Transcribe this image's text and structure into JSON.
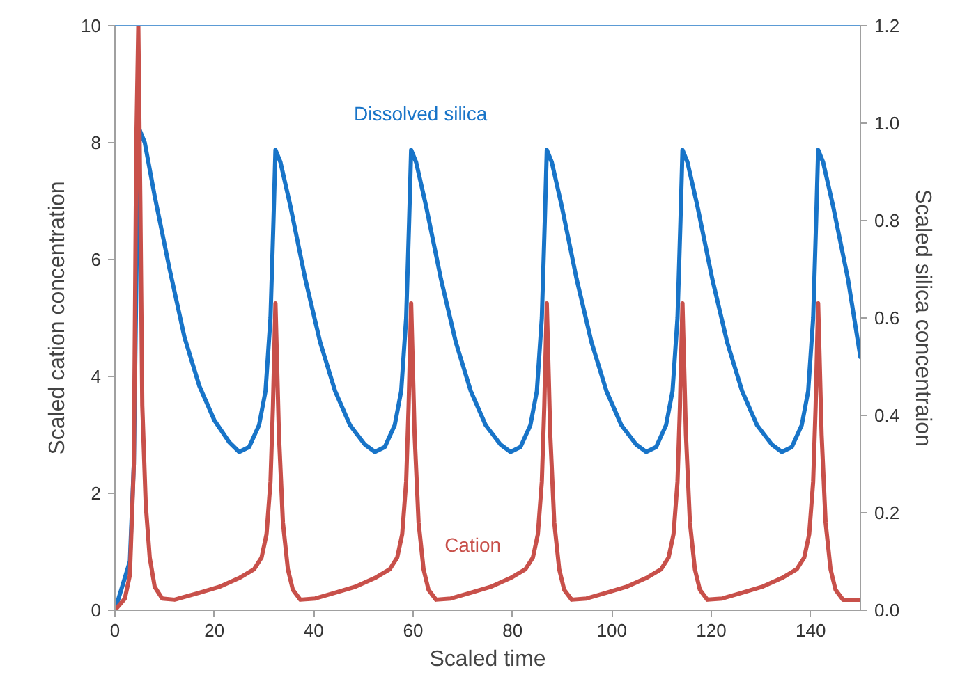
{
  "chart_data": {
    "type": "line",
    "xlabel": "Scaled time",
    "ylabel": "Scaled cation concentration",
    "y2label": "Scaled silica concentraion",
    "xlim": [
      0,
      150
    ],
    "xticks": [
      0,
      20,
      40,
      60,
      80,
      100,
      120,
      140
    ],
    "ylim": [
      0,
      10
    ],
    "yticks": [
      0,
      2,
      4,
      6,
      8,
      10
    ],
    "y2lim": [
      0,
      1.2
    ],
    "y2ticks": [
      {
        "value": 0,
        "label": "0.0"
      },
      {
        "value": 0.2,
        "label": "0.2"
      },
      {
        "value": 0.4,
        "label": "0.4"
      },
      {
        "value": 0.6,
        "label": "0.6"
      },
      {
        "value": 0.8,
        "label": "0.8"
      },
      {
        "value": 1.0,
        "label": "1.0"
      },
      {
        "value": 1.2,
        "label": "1.2"
      }
    ],
    "grid": false,
    "marker": "none",
    "line_style": "solid",
    "series": [
      {
        "name": "Dissolved silica",
        "color": "#1874c8",
        "axis": "y2",
        "x": [
          0,
          1.5,
          3,
          3.8,
          4.2,
          4.6,
          5,
          6,
          8,
          11,
          14,
          17,
          20,
          23,
          25,
          27,
          29,
          30.3,
          31.3,
          31.9,
          32.3,
          33.3,
          35.3,
          38.3,
          41.3,
          44.3,
          47.3,
          50.3,
          52.3,
          54.3,
          56.3,
          57.6,
          58.6,
          59.2,
          59.6,
          60.6,
          62.6,
          65.6,
          68.6,
          71.6,
          74.6,
          77.6,
          79.6,
          81.6,
          83.6,
          84.9,
          85.9,
          86.5,
          86.9,
          87.9,
          89.9,
          92.9,
          95.9,
          98.9,
          101.9,
          104.9,
          106.9,
          108.9,
          110.9,
          112.2,
          113.2,
          113.8,
          114.2,
          115.2,
          117.2,
          120.2,
          123.2,
          126.2,
          129.2,
          132.2,
          134.2,
          136.2,
          138.2,
          139.5,
          140.5,
          141.1,
          141.5,
          142.5,
          144.5,
          147.5,
          150
        ],
        "values": [
          0,
          0.05,
          0.1,
          0.3,
          0.6,
          0.9,
          0.985,
          0.96,
          0.85,
          0.7,
          0.56,
          0.46,
          0.39,
          0.345,
          0.325,
          0.335,
          0.38,
          0.45,
          0.6,
          0.8,
          0.945,
          0.92,
          0.83,
          0.68,
          0.55,
          0.45,
          0.38,
          0.34,
          0.325,
          0.335,
          0.38,
          0.45,
          0.6,
          0.8,
          0.945,
          0.92,
          0.83,
          0.68,
          0.55,
          0.45,
          0.38,
          0.34,
          0.325,
          0.335,
          0.38,
          0.45,
          0.6,
          0.8,
          0.945,
          0.92,
          0.83,
          0.68,
          0.55,
          0.45,
          0.38,
          0.34,
          0.325,
          0.335,
          0.38,
          0.45,
          0.6,
          0.8,
          0.945,
          0.92,
          0.83,
          0.68,
          0.55,
          0.45,
          0.38,
          0.34,
          0.325,
          0.335,
          0.38,
          0.45,
          0.6,
          0.8,
          0.945,
          0.92,
          0.83,
          0.68,
          0.52
        ]
      },
      {
        "name": "Cation",
        "color": "#c8504a",
        "x": [
          0,
          2,
          3,
          3.8,
          4.3,
          4.7,
          5.1,
          5.5,
          6.2,
          7,
          8,
          9.5,
          12,
          17,
          21,
          25,
          28,
          29.5,
          30.5,
          31.3,
          31.8,
          32.3,
          33,
          33.8,
          34.8,
          35.8,
          37.3,
          40.3,
          44.3,
          48.3,
          52.3,
          55.3,
          56.8,
          57.8,
          58.6,
          59.1,
          59.6,
          60.3,
          61.1,
          62.1,
          63.1,
          64.6,
          67.6,
          71.6,
          75.6,
          79.6,
          82.6,
          84.1,
          85.1,
          85.9,
          86.4,
          86.9,
          87.6,
          88.4,
          89.4,
          90.4,
          91.9,
          94.9,
          98.9,
          102.9,
          106.9,
          109.9,
          111.4,
          112.4,
          113.2,
          113.7,
          114.2,
          114.9,
          115.7,
          116.7,
          117.7,
          119.2,
          122.2,
          126.2,
          130.2,
          134.2,
          137.2,
          138.7,
          139.7,
          140.5,
          141.0,
          141.5,
          142.2,
          143,
          144,
          145,
          146.5,
          150
        ],
        "values": [
          0,
          0.2,
          0.6,
          2.5,
          8,
          10,
          7,
          3.5,
          1.8,
          0.9,
          0.4,
          0.2,
          0.18,
          0.3,
          0.4,
          0.55,
          0.7,
          0.9,
          1.3,
          2.2,
          3.5,
          5.25,
          3.0,
          1.5,
          0.7,
          0.35,
          0.18,
          0.2,
          0.3,
          0.4,
          0.55,
          0.7,
          0.9,
          1.3,
          2.2,
          3.5,
          5.25,
          3.0,
          1.5,
          0.7,
          0.35,
          0.18,
          0.2,
          0.3,
          0.4,
          0.55,
          0.7,
          0.9,
          1.3,
          2.2,
          3.5,
          5.25,
          3.0,
          1.5,
          0.7,
          0.35,
          0.18,
          0.2,
          0.3,
          0.4,
          0.55,
          0.7,
          0.9,
          1.3,
          2.2,
          3.5,
          5.25,
          3.0,
          1.5,
          0.7,
          0.35,
          0.18,
          0.2,
          0.3,
          0.4,
          0.55,
          0.7,
          0.9,
          1.3,
          2.2,
          3.5,
          5.25,
          3.0,
          1.5,
          0.7,
          0.35,
          0.18,
          0.18
        ]
      }
    ]
  }
}
